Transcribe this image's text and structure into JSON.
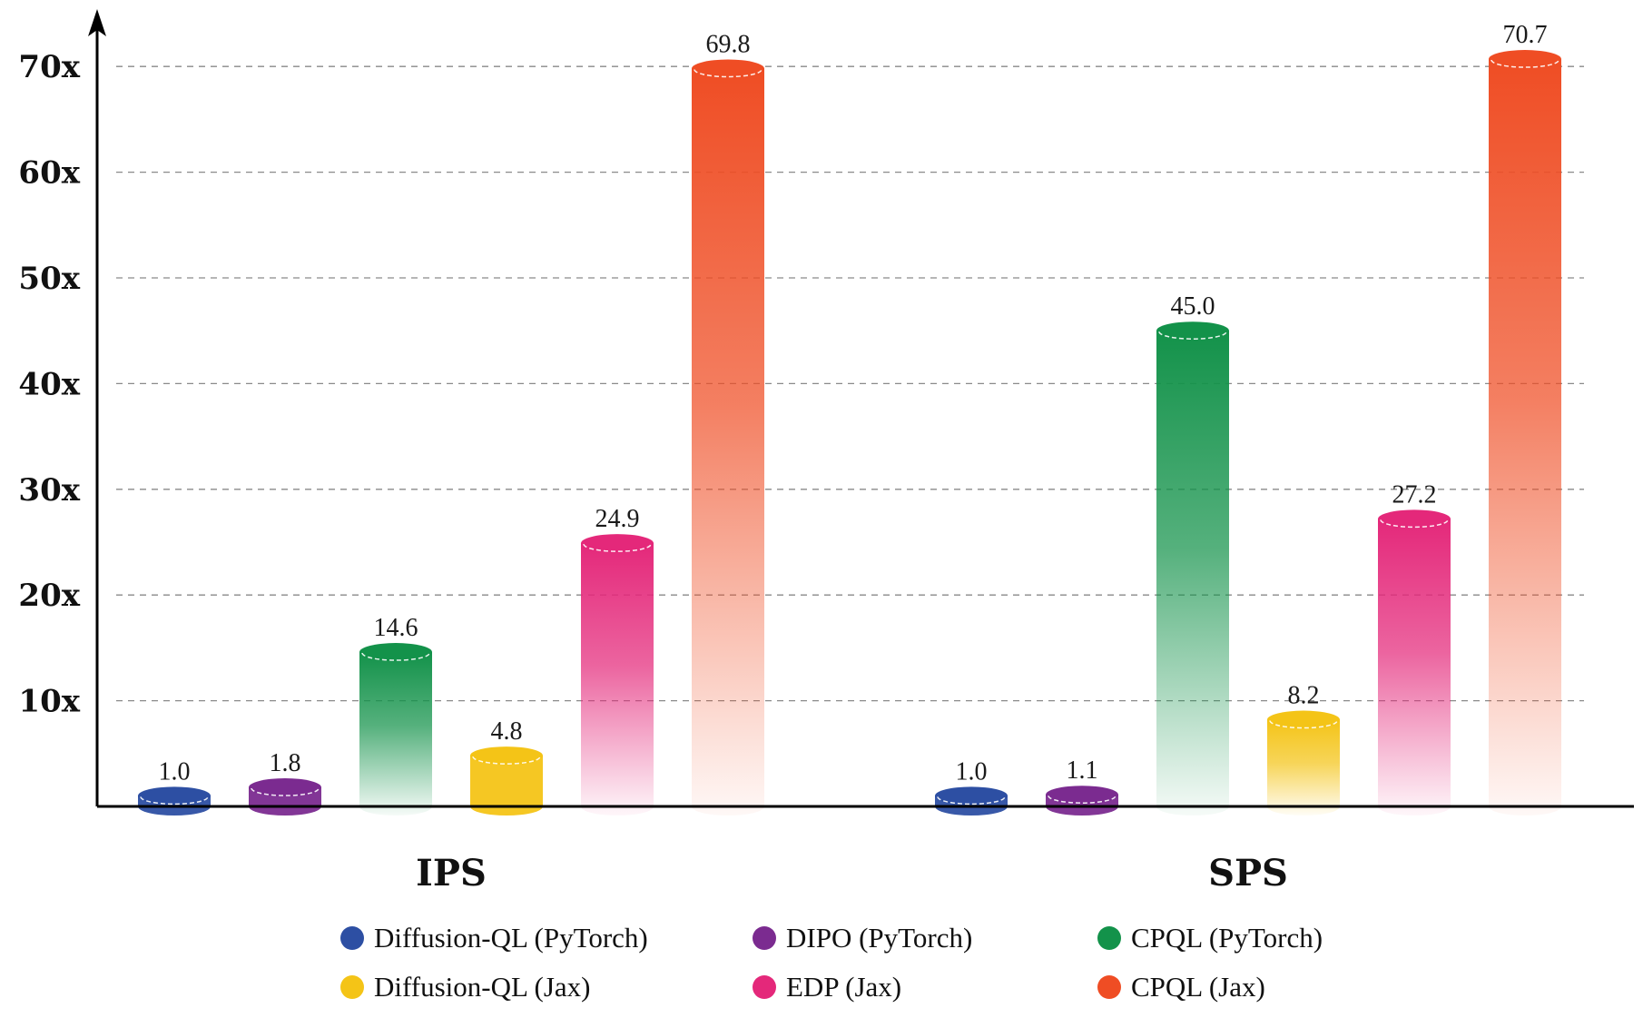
{
  "chart_data": {
    "type": "bar",
    "categories": [
      "IPS",
      "SPS"
    ],
    "y_ticks": [
      "10x",
      "20x",
      "30x",
      "40x",
      "50x",
      "60x",
      "70x"
    ],
    "ylim": [
      0,
      70
    ],
    "grid": true,
    "legend_position": "bottom",
    "series": [
      {
        "name": "Diffusion-QL (PyTorch)",
        "color": "#2d4fa3",
        "values": [
          1.0,
          1.0
        ],
        "labels": [
          "1.0",
          "1.0"
        ]
      },
      {
        "name": "DIPO (PyTorch)",
        "color": "#7b2b90",
        "values": [
          1.8,
          1.1
        ],
        "labels": [
          "1.8",
          "1.1"
        ]
      },
      {
        "name": "CPQL (PyTorch)",
        "color": "#13924a",
        "values": [
          14.6,
          45.0
        ],
        "labels": [
          "14.6",
          "45.0"
        ]
      },
      {
        "name": "Diffusion-QL (Jax)",
        "color": "#f4c417",
        "values": [
          4.8,
          8.2
        ],
        "labels": [
          "4.8",
          "8.2"
        ]
      },
      {
        "name": "EDP (Jax)",
        "color": "#e4287a",
        "values": [
          24.9,
          27.2
        ],
        "labels": [
          "24.9",
          "27.2"
        ]
      },
      {
        "name": "CPQL (Jax)",
        "color": "#ef4d24",
        "values": [
          69.8,
          70.7
        ],
        "labels": [
          "69.8",
          "70.7"
        ]
      }
    ]
  }
}
